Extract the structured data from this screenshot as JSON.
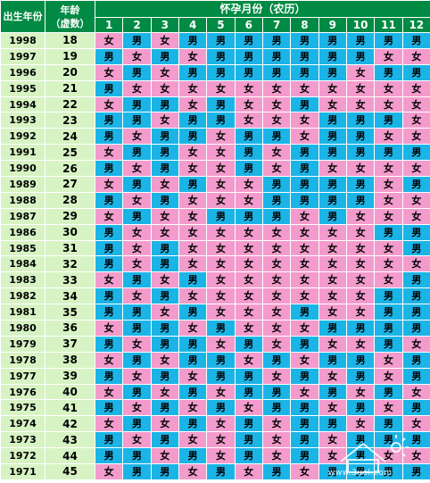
{
  "header": {
    "year_label": "出生年份",
    "age_label_line1": "年龄",
    "age_label_line2": "（虚数）",
    "month_group_label": "怀孕月份（农历）",
    "months": [
      "1",
      "2",
      "3",
      "4",
      "5",
      "6",
      "7",
      "8",
      "9",
      "10",
      "11",
      "12"
    ]
  },
  "rows": [
    {
      "year": "1998",
      "age": "18",
      "cells": [
        "女",
        "男",
        "女",
        "男",
        "男",
        "男",
        "男",
        "男",
        "男",
        "男",
        "男",
        "男"
      ]
    },
    {
      "year": "1997",
      "age": "19",
      "cells": [
        "男",
        "女",
        "男",
        "女",
        "男",
        "男",
        "男",
        "男",
        "男",
        "男",
        "女",
        "女"
      ]
    },
    {
      "year": "1996",
      "age": "20",
      "cells": [
        "女",
        "男",
        "女",
        "男",
        "男",
        "男",
        "男",
        "男",
        "男",
        "女",
        "男",
        "男"
      ]
    },
    {
      "year": "1995",
      "age": "21",
      "cells": [
        "男",
        "女",
        "女",
        "女",
        "女",
        "女",
        "女",
        "女",
        "女",
        "女",
        "女",
        "女"
      ]
    },
    {
      "year": "1994",
      "age": "22",
      "cells": [
        "女",
        "男",
        "男",
        "女",
        "男",
        "女",
        "女",
        "男",
        "女",
        "女",
        "女",
        "女"
      ]
    },
    {
      "year": "1993",
      "age": "23",
      "cells": [
        "男",
        "男",
        "女",
        "男",
        "男",
        "女",
        "女",
        "女",
        "男",
        "男",
        "男",
        "女"
      ]
    },
    {
      "year": "1992",
      "age": "24",
      "cells": [
        "男",
        "女",
        "男",
        "男",
        "女",
        "男",
        "男",
        "女",
        "男",
        "男",
        "女",
        "女"
      ]
    },
    {
      "year": "1991",
      "age": "25",
      "cells": [
        "女",
        "男",
        "男",
        "女",
        "女",
        "男",
        "女",
        "男",
        "男",
        "男",
        "男",
        "男"
      ]
    },
    {
      "year": "1990",
      "age": "26",
      "cells": [
        "男",
        "女",
        "男",
        "女",
        "女",
        "男",
        "女",
        "男",
        "女",
        "女",
        "女",
        "女"
      ]
    },
    {
      "year": "1989",
      "age": "27",
      "cells": [
        "女",
        "男",
        "女",
        "男",
        "女",
        "女",
        "男",
        "男",
        "男",
        "男",
        "女",
        "男"
      ]
    },
    {
      "year": "1988",
      "age": "28",
      "cells": [
        "男",
        "女",
        "男",
        "女",
        "女",
        "女",
        "男",
        "男",
        "男",
        "男",
        "女",
        "女"
      ]
    },
    {
      "year": "1987",
      "age": "29",
      "cells": [
        "女",
        "男",
        "女",
        "女",
        "男",
        "男",
        "男",
        "女",
        "男",
        "女",
        "女",
        "女"
      ]
    },
    {
      "year": "1986",
      "age": "30",
      "cells": [
        "男",
        "女",
        "女",
        "女",
        "女",
        "女",
        "女",
        "女",
        "女",
        "女",
        "男",
        "男"
      ]
    },
    {
      "year": "1985",
      "age": "31",
      "cells": [
        "男",
        "女",
        "男",
        "女",
        "女",
        "女",
        "女",
        "女",
        "女",
        "女",
        "女",
        "男"
      ]
    },
    {
      "year": "1984",
      "age": "32",
      "cells": [
        "男",
        "女",
        "男",
        "女",
        "女",
        "女",
        "女",
        "女",
        "女",
        "女",
        "女",
        "女"
      ]
    },
    {
      "year": "1983",
      "age": "33",
      "cells": [
        "女",
        "男",
        "女",
        "男",
        "女",
        "女",
        "女",
        "女",
        "女",
        "女",
        "女",
        "男"
      ]
    },
    {
      "year": "1982",
      "age": "34",
      "cells": [
        "男",
        "女",
        "男",
        "女",
        "女",
        "女",
        "女",
        "女",
        "女",
        "女",
        "男",
        "男"
      ]
    },
    {
      "year": "1981",
      "age": "35",
      "cells": [
        "男",
        "男",
        "女",
        "男",
        "女",
        "女",
        "女",
        "男",
        "女",
        "女",
        "男",
        "男"
      ]
    },
    {
      "year": "1980",
      "age": "36",
      "cells": [
        "女",
        "男",
        "男",
        "女",
        "男",
        "女",
        "女",
        "女",
        "男",
        "男",
        "男",
        "男"
      ]
    },
    {
      "year": "1979",
      "age": "37",
      "cells": [
        "男",
        "女",
        "男",
        "男",
        "女",
        "男",
        "女",
        "男",
        "女",
        "女",
        "男",
        "女"
      ]
    },
    {
      "year": "1978",
      "age": "38",
      "cells": [
        "女",
        "男",
        "女",
        "男",
        "男",
        "女",
        "男",
        "女",
        "男",
        "男",
        "女",
        "男"
      ]
    },
    {
      "year": "1977",
      "age": "39",
      "cells": [
        "男",
        "女",
        "男",
        "女",
        "男",
        "男",
        "女",
        "男",
        "女",
        "男",
        "女",
        "男"
      ]
    },
    {
      "year": "1976",
      "age": "40",
      "cells": [
        "女",
        "男",
        "女",
        "男",
        "女",
        "男",
        "男",
        "女",
        "男",
        "女",
        "男",
        "女"
      ]
    },
    {
      "year": "1975",
      "age": "41",
      "cells": [
        "男",
        "女",
        "男",
        "女",
        "男",
        "女",
        "男",
        "男",
        "女",
        "男",
        "女",
        "男"
      ]
    },
    {
      "year": "1974",
      "age": "42",
      "cells": [
        "女",
        "男",
        "女",
        "男",
        "女",
        "男",
        "女",
        "男",
        "男",
        "女",
        "男",
        "女"
      ]
    },
    {
      "year": "1973",
      "age": "43",
      "cells": [
        "男",
        "女",
        "男",
        "女",
        "女",
        "男",
        "女",
        "男",
        "女",
        "男",
        "男",
        "男"
      ]
    },
    {
      "year": "1972",
      "age": "44",
      "cells": [
        "男",
        "男",
        "女",
        "男",
        "女",
        "男",
        "女",
        "男",
        "女",
        "男",
        "女",
        "女"
      ]
    },
    {
      "year": "1971",
      "age": "45",
      "cells": [
        "女",
        "男",
        "男",
        "女",
        "男",
        "女",
        "男",
        "女",
        "男",
        "男",
        "男",
        "男"
      ]
    }
  ],
  "watermark": {
    "site": "www.3uol.com"
  },
  "colors": {
    "header_bg": "#008a43",
    "label_bg": "#d7f3c4",
    "male_bg": "#1bb4e6",
    "female_bg": "#f39bcc",
    "male_value": "男"
  }
}
